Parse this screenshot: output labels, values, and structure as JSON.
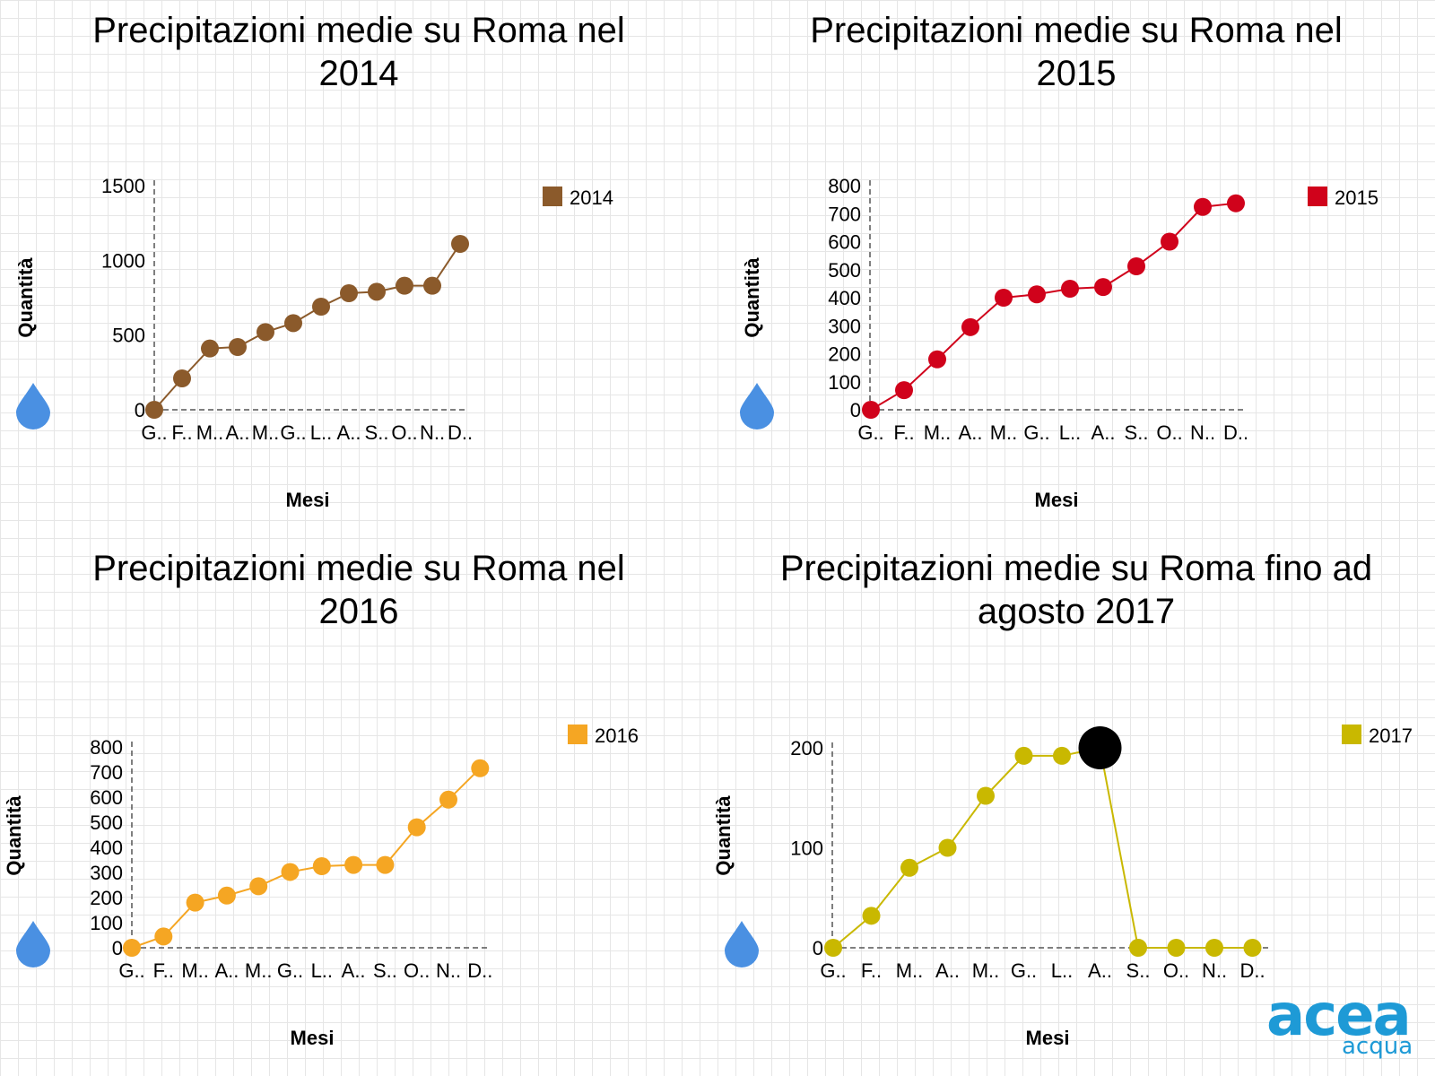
{
  "chart_data": [
    {
      "type": "line",
      "title": "Precipitazioni medie su Roma nel\n2014",
      "xlabel": "Mesi",
      "ylabel": "Quantità",
      "categories": [
        "G..",
        "F..",
        "M..",
        "A..",
        "M..",
        "G..",
        "L..",
        "A..",
        "S..",
        "O..",
        "N..",
        "D.."
      ],
      "series": [
        {
          "name": "2014",
          "color": "#8b5a2b",
          "values": [
            0,
            210,
            410,
            420,
            520,
            580,
            690,
            780,
            790,
            830,
            830,
            1110
          ]
        }
      ],
      "ylim": [
        0,
        1500
      ],
      "yticks": [
        0,
        500,
        1000,
        1500
      ],
      "legend": "top-right",
      "grid": false
    },
    {
      "type": "line",
      "title": "Precipitazioni medie su Roma nel\n2015",
      "xlabel": "Mesi",
      "ylabel": "Quantità",
      "categories": [
        "G..",
        "F..",
        "M..",
        "A..",
        "M..",
        "G..",
        "L..",
        "A..",
        "S..",
        "O..",
        "N..",
        "D.."
      ],
      "series": [
        {
          "name": "2015",
          "color": "#d0021b",
          "values": [
            0,
            70,
            180,
            295,
            400,
            412,
            432,
            438,
            512,
            600,
            724,
            737
          ]
        }
      ],
      "ylim": [
        0,
        800
      ],
      "yticks": [
        0,
        100,
        200,
        300,
        400,
        500,
        600,
        700,
        800
      ],
      "legend": "top-right",
      "grid": false
    },
    {
      "type": "line",
      "title": "Precipitazioni medie su Roma nel\n2016",
      "xlabel": "Mesi",
      "ylabel": "Quantità",
      "categories": [
        "G..",
        "F..",
        "M..",
        "A..",
        "M..",
        "G..",
        "L..",
        "A..",
        "S..",
        "O..",
        "N..",
        "D.."
      ],
      "series": [
        {
          "name": "2016",
          "color": "#f5a623",
          "values": [
            0,
            45,
            180,
            208,
            245,
            302,
            325,
            330,
            330,
            480,
            590,
            715
          ]
        }
      ],
      "ylim": [
        0,
        800
      ],
      "yticks": [
        0,
        100,
        200,
        300,
        400,
        500,
        600,
        700,
        800
      ],
      "legend": "top-right",
      "grid": false
    },
    {
      "type": "line",
      "title": "Precipitazioni medie su Roma fino ad\nagosto 2017",
      "xlabel": "Mesi",
      "ylabel": "Quantità",
      "categories": [
        "G..",
        "F..",
        "M..",
        "A..",
        "M..",
        "G..",
        "L..",
        "A..",
        "S..",
        "O..",
        "N..",
        "D.."
      ],
      "series": [
        {
          "name": "2017",
          "color": "#c9b800",
          "values": [
            0,
            32,
            80,
            100,
            152,
            192,
            192,
            200,
            0,
            0,
            0,
            0
          ]
        }
      ],
      "highlight_index": 7,
      "ylim": [
        0,
        200
      ],
      "yticks": [
        0,
        100,
        200
      ],
      "legend": "top-right",
      "grid": false
    }
  ],
  "icons": {
    "drop": "water-drop-icon",
    "drop_color": "#4a90e2"
  },
  "logo": {
    "main": "acea",
    "sub": "acqua",
    "color": "#1e9ad6"
  }
}
